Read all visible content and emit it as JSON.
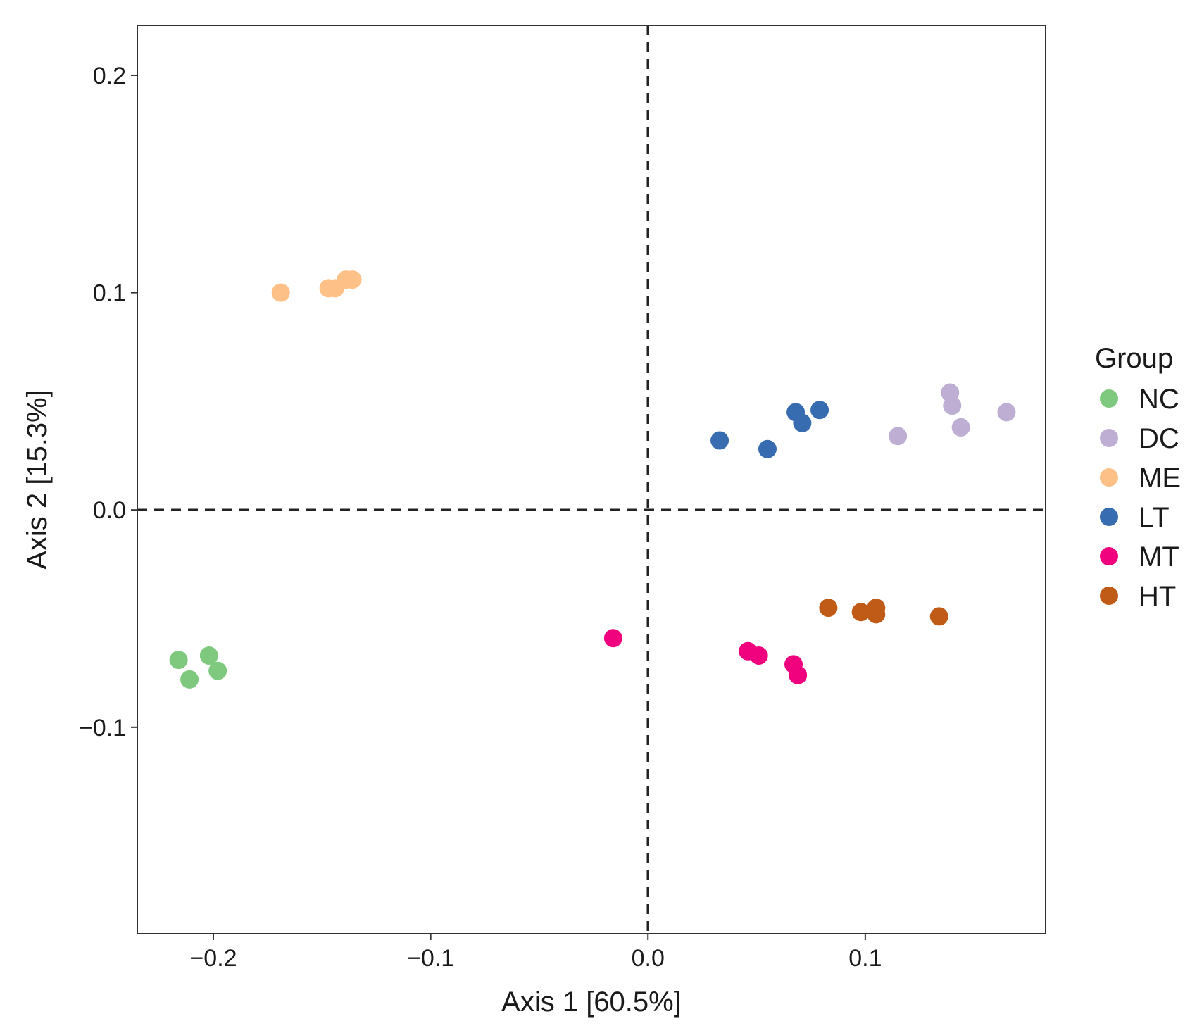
{
  "chart_data": {
    "type": "scatter",
    "title": "",
    "xlabel": "Axis 1 [60.5%]",
    "ylabel": "Axis 2 [15.3%]",
    "xlim": [
      -0.235,
      0.183
    ],
    "ylim": [
      -0.195,
      0.223
    ],
    "xticks": [
      -0.2,
      -0.1,
      0.0,
      0.1
    ],
    "xtick_labels": [
      "−0.2",
      "−0.1",
      "0.0",
      "0.1"
    ],
    "yticks": [
      -0.1,
      0.0,
      0.1,
      0.2
    ],
    "ytick_labels": [
      "−0.1",
      "0.0",
      "0.1",
      "0.2"
    ],
    "reference_lines": {
      "x": 0.0,
      "y": 0.0,
      "style": "dashed"
    },
    "grid": false,
    "legend": {
      "title": "Group",
      "position": "right"
    },
    "series": [
      {
        "name": "NC",
        "color": "#7fc97f",
        "points": [
          [
            -0.216,
            -0.069
          ],
          [
            -0.202,
            -0.067
          ],
          [
            -0.211,
            -0.078
          ],
          [
            -0.198,
            -0.074
          ]
        ]
      },
      {
        "name": "DC",
        "color": "#beaed4",
        "points": [
          [
            0.115,
            0.034
          ],
          [
            0.139,
            0.054
          ],
          [
            0.14,
            0.048
          ],
          [
            0.144,
            0.038
          ],
          [
            0.165,
            0.045
          ]
        ]
      },
      {
        "name": "ME",
        "color": "#fdc086",
        "points": [
          [
            -0.169,
            0.1
          ],
          [
            -0.147,
            0.102
          ],
          [
            -0.144,
            0.102
          ],
          [
            -0.139,
            0.106
          ],
          [
            -0.136,
            0.106
          ]
        ]
      },
      {
        "name": "LT",
        "color": "#386cb0",
        "points": [
          [
            0.033,
            0.032
          ],
          [
            0.055,
            0.028
          ],
          [
            0.068,
            0.045
          ],
          [
            0.071,
            0.04
          ],
          [
            0.079,
            0.046
          ]
        ]
      },
      {
        "name": "MT",
        "color": "#f0027f",
        "points": [
          [
            -0.016,
            -0.059
          ],
          [
            0.046,
            -0.065
          ],
          [
            0.051,
            -0.067
          ],
          [
            0.067,
            -0.071
          ],
          [
            0.069,
            -0.076
          ]
        ]
      },
      {
        "name": "HT",
        "color": "#bf5b17",
        "points": [
          [
            0.083,
            -0.045
          ],
          [
            0.098,
            -0.047
          ],
          [
            0.105,
            -0.045
          ],
          [
            0.105,
            -0.048
          ],
          [
            0.134,
            -0.049
          ]
        ]
      }
    ]
  }
}
